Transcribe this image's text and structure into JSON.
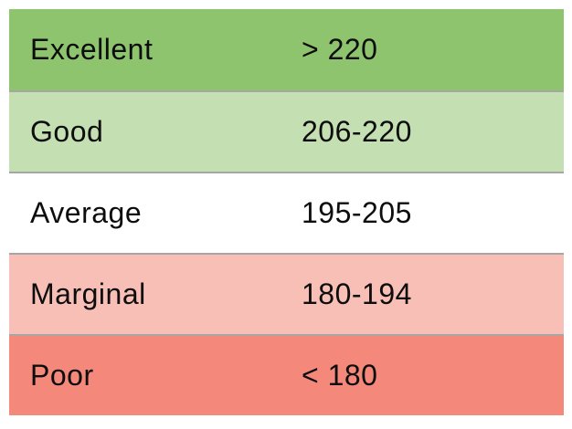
{
  "table": {
    "rows": [
      {
        "label": "Excellent",
        "value": "> 220",
        "bg": "#8dc46d"
      },
      {
        "label": "Good",
        "value": "206-220",
        "bg": "#c4e0b2"
      },
      {
        "label": "Average",
        "value": "195-205",
        "bg": "#ffffff"
      },
      {
        "label": "Marginal",
        "value": "180-194",
        "bg": "#f8bfb7"
      },
      {
        "label": "Poor",
        "value": "< 180",
        "bg": "#f4897b"
      }
    ],
    "separator_color": "#a6a6a6",
    "text_color": "#0d0d0d"
  },
  "chart_data": {
    "type": "table",
    "rows": [
      [
        "Excellent",
        "> 220"
      ],
      [
        "Good",
        "206-220"
      ],
      [
        "Average",
        "195-205"
      ],
      [
        "Marginal",
        "180-194"
      ],
      [
        "Poor",
        "< 180"
      ]
    ],
    "row_colors": [
      "#8dc46d",
      "#c4e0b2",
      "#ffffff",
      "#f8bfb7",
      "#f4897b"
    ],
    "legend_position": "none",
    "grid": false
  }
}
